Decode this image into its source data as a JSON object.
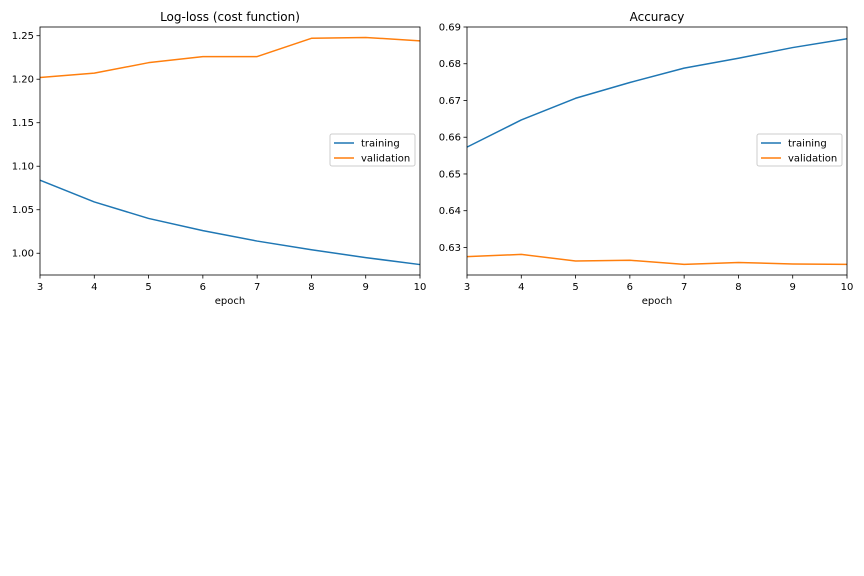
{
  "chart_data": [
    {
      "type": "line",
      "title": "Log-loss (cost function)",
      "xlabel": "epoch",
      "ylabel": "",
      "xlim": [
        3,
        10
      ],
      "ylim": [
        0.975,
        1.26
      ],
      "xticks": [
        "3",
        "4",
        "5",
        "6",
        "7",
        "8",
        "9",
        "10"
      ],
      "yticks": [
        "1.00",
        "1.05",
        "1.10",
        "1.15",
        "1.20",
        "1.25"
      ],
      "x": [
        3,
        4,
        5,
        6,
        7,
        8,
        9,
        10
      ],
      "series": [
        {
          "name": "training",
          "color": "#1f77b4",
          "values": [
            1.084,
            1.059,
            1.04,
            1.026,
            1.014,
            1.004,
            0.995,
            0.987
          ]
        },
        {
          "name": "validation",
          "color": "#ff7f0e",
          "values": [
            1.202,
            1.207,
            1.219,
            1.226,
            1.226,
            1.247,
            1.248,
            1.244
          ]
        }
      ],
      "legend": "center-right",
      "grid": false
    },
    {
      "type": "line",
      "title": "Accuracy",
      "xlabel": "epoch",
      "ylabel": "",
      "xlim": [
        3,
        10
      ],
      "ylim": [
        0.6225,
        0.69
      ],
      "xticks": [
        "3",
        "4",
        "5",
        "6",
        "7",
        "8",
        "9",
        "10"
      ],
      "yticks": [
        "0.63",
        "0.64",
        "0.65",
        "0.66",
        "0.67",
        "0.68",
        "0.69"
      ],
      "x": [
        3,
        4,
        5,
        6,
        7,
        8,
        9,
        10
      ],
      "series": [
        {
          "name": "training",
          "color": "#1f77b4",
          "values": [
            0.6573,
            0.6647,
            0.6706,
            0.6749,
            0.6788,
            0.6815,
            0.6844,
            0.6868
          ]
        },
        {
          "name": "validation",
          "color": "#ff7f0e",
          "values": [
            0.6275,
            0.6281,
            0.6263,
            0.6265,
            0.6254,
            0.6259,
            0.6255,
            0.6254
          ]
        }
      ],
      "legend": "center-right",
      "grid": false
    }
  ]
}
